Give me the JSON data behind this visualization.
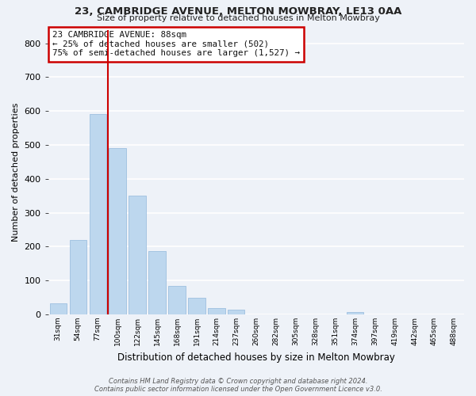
{
  "title_line1": "23, CAMBRIDGE AVENUE, MELTON MOWBRAY, LE13 0AA",
  "title_line2": "Size of property relative to detached houses in Melton Mowbray",
  "xlabel": "Distribution of detached houses by size in Melton Mowbray",
  "ylabel": "Number of detached properties",
  "footnote": "Contains HM Land Registry data © Crown copyright and database right 2024.\nContains public sector information licensed under the Open Government Licence v3.0.",
  "bar_labels": [
    "31sqm",
    "54sqm",
    "77sqm",
    "100sqm",
    "122sqm",
    "145sqm",
    "168sqm",
    "191sqm",
    "214sqm",
    "237sqm",
    "260sqm",
    "282sqm",
    "305sqm",
    "328sqm",
    "351sqm",
    "374sqm",
    "397sqm",
    "419sqm",
    "442sqm",
    "465sqm",
    "488sqm"
  ],
  "bar_values": [
    33,
    220,
    590,
    490,
    350,
    188,
    85,
    50,
    18,
    13,
    0,
    0,
    0,
    0,
    0,
    8,
    0,
    0,
    0,
    0,
    0
  ],
  "bar_color": "#bdd7ee",
  "bar_edge_color": "#9dbfe0",
  "ylim": [
    0,
    840
  ],
  "yticks": [
    0,
    100,
    200,
    300,
    400,
    500,
    600,
    700,
    800
  ],
  "red_line_color": "#cc0000",
  "red_line_bin_index": 2,
  "annotation_title": "23 CAMBRIDGE AVENUE: 88sqm",
  "annotation_line2": "← 25% of detached houses are smaller (502)",
  "annotation_line3": "75% of semi-detached houses are larger (1,527) →",
  "annotation_box_facecolor": "#ffffff",
  "annotation_box_edgecolor": "#cc0000",
  "background_color": "#eef2f8",
  "grid_color": "#ffffff",
  "n_bins": 21
}
